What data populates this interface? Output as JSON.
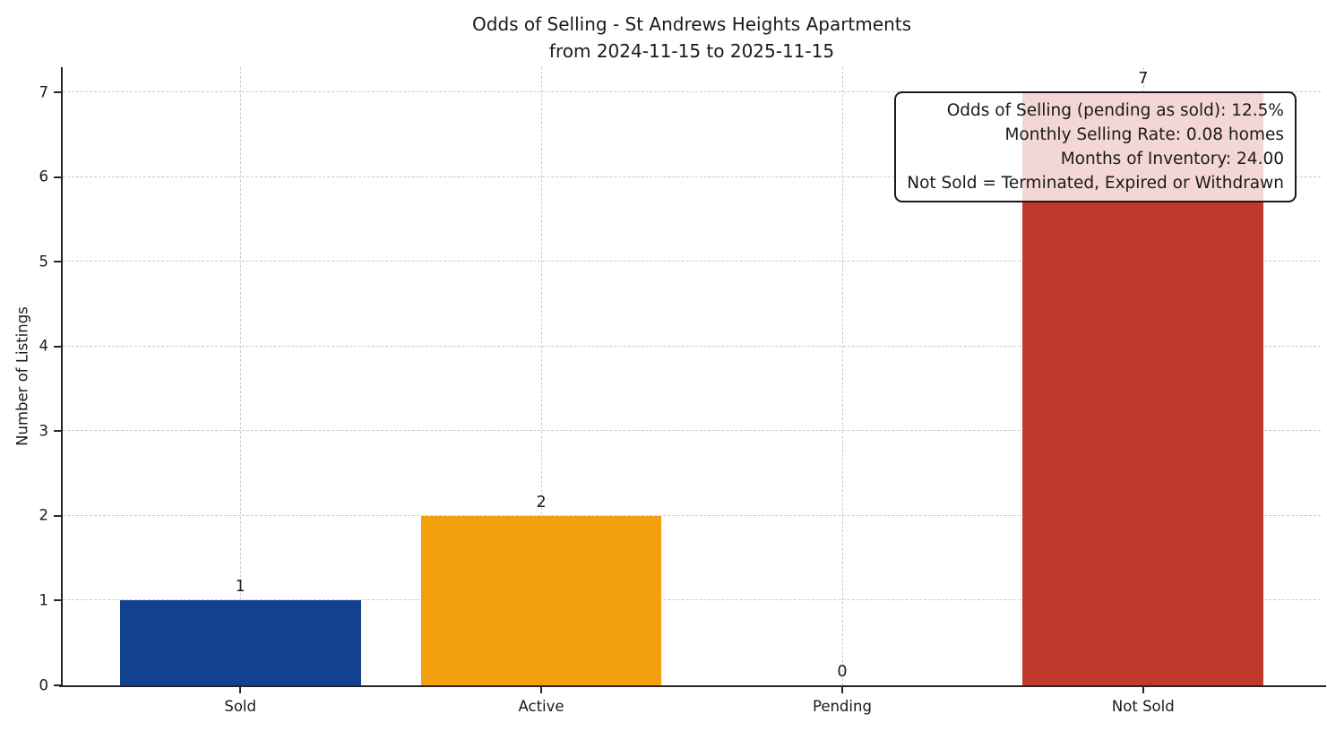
{
  "chart_data": {
    "type": "bar",
    "title": "Odds of Selling - St Andrews Heights Apartments",
    "subtitle": "from 2024-11-15 to 2025-11-15",
    "xlabel": "",
    "ylabel": "Number of Listings",
    "categories": [
      "Sold",
      "Active",
      "Pending",
      "Not Sold"
    ],
    "values": [
      1,
      2,
      0,
      7
    ],
    "value_labels": [
      "1",
      "2",
      "0",
      "7"
    ],
    "bar_colors": [
      "#12418F",
      "#F2A00E",
      "#C9C9C9",
      "#C0392B"
    ],
    "ylim": [
      0,
      7.3
    ],
    "yticks": [
      0,
      1,
      2,
      3,
      4,
      5,
      6,
      7
    ],
    "grid": true,
    "grid_style": "dashed",
    "grid_color": "#c9c9c9",
    "spine_color": "#262626",
    "annotation": {
      "lines": [
        "Odds of Selling (pending as sold): 12.5%",
        "Monthly Selling Rate: 0.08 homes",
        "Months of Inventory: 24.00",
        "Not Sold = Terminated, Expired or Withdrawn"
      ],
      "position": "top-right",
      "background": "rgba(255,255,255,0.8)",
      "border_color": "#1a1a1a"
    }
  }
}
